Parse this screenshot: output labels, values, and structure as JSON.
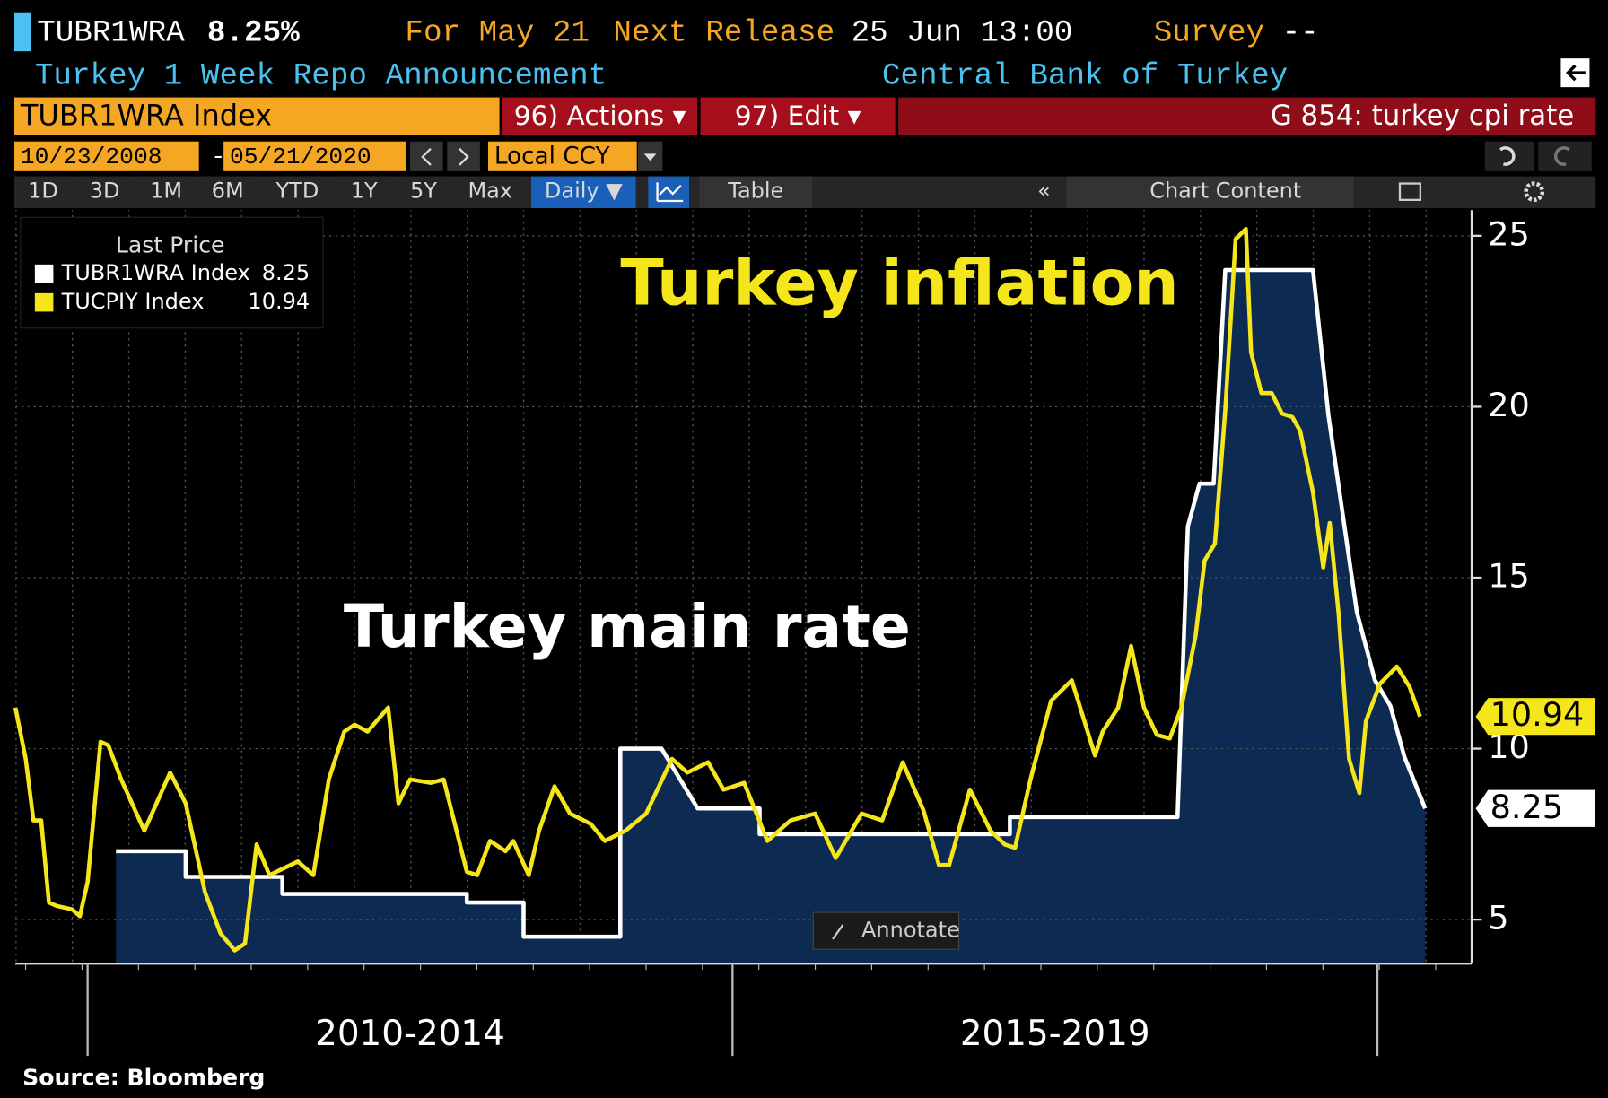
{
  "header": {
    "ticker": "TUBR1WRA",
    "last": "8.25%",
    "for": "For May 21",
    "next_release": "Next Release",
    "release_time": "25 Jun 13:00",
    "survey": "Survey",
    "survey_value": "--",
    "description": "Turkey 1 Week Repo Announcement",
    "source_bank": "Central Bank of Turkey"
  },
  "toolbar": {
    "security": "TUBR1WRA Index",
    "actions": "96) Actions ▾",
    "edit": "97) Edit ▾",
    "function": "G 854: turkey cpi rate",
    "start_date": "10/23/2008",
    "date_sep": "-",
    "end_date": "05/21/2020",
    "currency": "Local CCY",
    "ranges": [
      "1D",
      "3D",
      "1M",
      "6M",
      "YTD",
      "1Y",
      "5Y",
      "Max"
    ],
    "frequency": "Daily ▼",
    "table": "Table",
    "chart_content": "Chart Content",
    "annotate": "Annotate"
  },
  "chart_data": {
    "type": "line",
    "legend_title": "Last Price",
    "legend": "top-left",
    "grid": true,
    "annotations": [
      "Turkey inflation",
      "Turkey main rate"
    ],
    "source": "Source: Bloomberg",
    "xlim": [
      2009.44,
      2020.73
    ],
    "ylim": [
      3.71,
      25.75
    ],
    "yticks": [
      5,
      10,
      15,
      20,
      25
    ],
    "xticks": [
      {
        "value": 2012.5,
        "label": "2010-2014"
      },
      {
        "value": 2017.5,
        "label": "2015-2019"
      }
    ],
    "series": [
      {
        "name": "TUBR1WRA Index",
        "color": "#ffffff",
        "area_color": "#0d2a52",
        "x": [
          2010.22,
          2010.76,
          2010.76,
          2011.51,
          2011.51,
          2012.94,
          2012.94,
          2013.38,
          2013.38,
          2014.13,
          2014.13,
          2014.45,
          2014.73,
          2015.21,
          2015.21,
          2017.15,
          2017.15,
          2018.45,
          2018.53,
          2018.62,
          2018.73,
          2018.82,
          2019.5,
          2019.62,
          2019.84,
          2019.98,
          2020.1,
          2020.21,
          2020.37
        ],
        "values": [
          7.0,
          7.0,
          6.25,
          6.25,
          5.75,
          5.75,
          5.5,
          5.5,
          4.5,
          4.5,
          10,
          10,
          8.25,
          8.25,
          7.5,
          7.5,
          8.0,
          8.0,
          16.5,
          17.75,
          17.75,
          24,
          24,
          19.75,
          14,
          12,
          11.25,
          9.75,
          8.25
        ]
      },
      {
        "name": "TUCPIY Index",
        "color": "#f5e61c",
        "x": [
          2009.44,
          2009.52,
          2009.58,
          2009.64,
          2009.7,
          2009.76,
          2009.88,
          2009.94,
          2010.0,
          2010.1,
          2010.16,
          2010.26,
          2010.44,
          2010.64,
          2010.76,
          2010.91,
          2011.03,
          2011.14,
          2011.22,
          2011.31,
          2011.41,
          2011.63,
          2011.75,
          2011.87,
          2011.99,
          2012.07,
          2012.17,
          2012.33,
          2012.41,
          2012.5,
          2012.66,
          2012.76,
          2012.94,
          2013.02,
          2013.12,
          2013.24,
          2013.3,
          2013.42,
          2013.5,
          2013.62,
          2013.74,
          2013.9,
          2014.01,
          2014.17,
          2014.33,
          2014.53,
          2014.65,
          2014.81,
          2014.93,
          2015.09,
          2015.27,
          2015.45,
          2015.64,
          2015.8,
          2016.0,
          2016.16,
          2016.32,
          2016.48,
          2016.6,
          2016.68,
          2016.84,
          2017.0,
          2017.11,
          2017.19,
          2017.31,
          2017.47,
          2017.63,
          2017.81,
          2017.87,
          2017.99,
          2018.09,
          2018.19,
          2018.29,
          2018.39,
          2018.48,
          2018.59,
          2018.66,
          2018.74,
          2018.82,
          2018.9,
          2018.98,
          2019.02,
          2019.1,
          2019.18,
          2019.26,
          2019.34,
          2019.4,
          2019.5,
          2019.58,
          2019.63,
          2019.7,
          2019.78,
          2019.86,
          2019.91,
          2020.02,
          2020.15,
          2020.25,
          2020.33
        ],
        "values": [
          11.2,
          9.7,
          7.9,
          7.9,
          5.5,
          5.4,
          5.3,
          5.1,
          6.1,
          10.2,
          10.1,
          9.1,
          7.6,
          9.3,
          8.4,
          5.8,
          4.6,
          4.1,
          4.3,
          7.2,
          6.3,
          6.7,
          6.3,
          9.1,
          10.5,
          10.7,
          10.5,
          11.2,
          8.4,
          9.1,
          9.0,
          9.1,
          6.4,
          6.3,
          7.3,
          7.0,
          7.3,
          6.3,
          7.6,
          8.9,
          8.1,
          7.8,
          7.3,
          7.6,
          8.1,
          9.7,
          9.3,
          9.6,
          8.8,
          9.0,
          7.3,
          7.9,
          8.1,
          6.8,
          8.1,
          7.9,
          9.6,
          8.2,
          6.6,
          6.6,
          8.8,
          7.6,
          7.2,
          7.1,
          9.1,
          11.4,
          12.0,
          9.8,
          10.5,
          11.2,
          13.0,
          11.2,
          10.4,
          10.3,
          11.2,
          13.3,
          15.5,
          16.0,
          19.9,
          24.9,
          25.2,
          21.6,
          20.4,
          20.4,
          19.8,
          19.7,
          19.3,
          17.5,
          15.3,
          16.6,
          13.9,
          9.7,
          8.7,
          10.8,
          11.9,
          12.4,
          11.8,
          10.94
        ]
      }
    ]
  }
}
